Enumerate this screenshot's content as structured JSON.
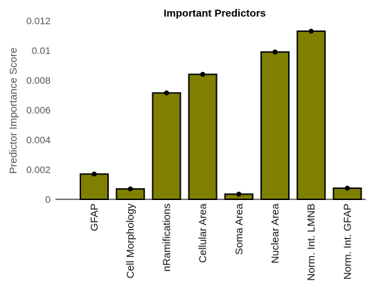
{
  "chart_data": {
    "type": "bar",
    "title": "Important Predictors",
    "xlabel": "",
    "ylabel": "Predictor Importance Score",
    "categories": [
      "GFAP",
      "Cell Morphology",
      "nRamifications",
      "Cellular Area",
      "Soma Area",
      "Nuclear Area",
      "Norm. Int. LMNB",
      "Norm. Int. GFAP"
    ],
    "values": [
      0.0017,
      0.0007,
      0.00715,
      0.0084,
      0.00035,
      0.0099,
      0.0113,
      0.00075
    ],
    "ylim": [
      0,
      0.012
    ],
    "yticks": [
      "0",
      "0.002",
      "0.004",
      "0.006",
      "0.008",
      "0.01",
      "0.012"
    ],
    "grid": false,
    "bar_color": "#808000",
    "bar_edge_color": "#000000",
    "point_color": "#000000"
  }
}
